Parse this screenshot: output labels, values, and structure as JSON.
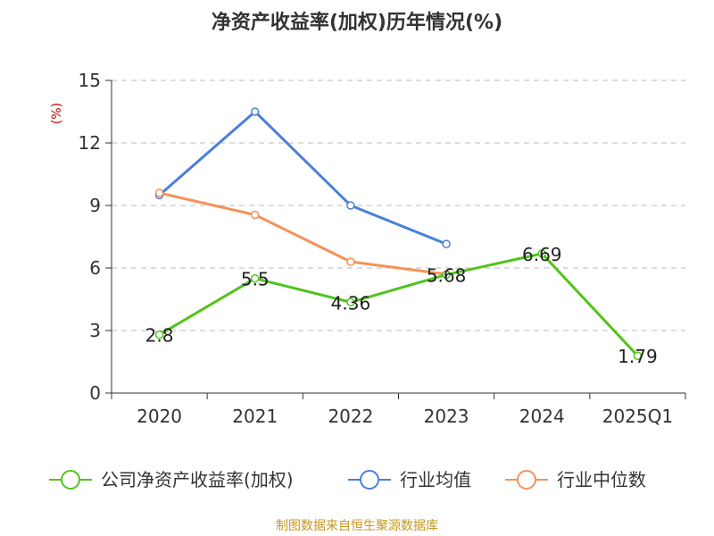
{
  "chart_data": {
    "type": "line",
    "title": "净资产收益率(加权)历年情况(%)",
    "ylabel": "(%)",
    "xlabel": "",
    "categories": [
      "2020",
      "2021",
      "2022",
      "2023",
      "2024",
      "2025Q1"
    ],
    "ylim": [
      0,
      15
    ],
    "yticks": [
      0,
      3,
      6,
      9,
      12,
      15
    ],
    "grid": true,
    "legend_position": "bottom",
    "series": [
      {
        "name": "公司净资产收益率(加权)",
        "color": "#52c41a",
        "values": [
          2.8,
          5.5,
          4.36,
          5.68,
          6.69,
          1.79
        ],
        "labels": [
          "2.8",
          "5.5",
          "4.36",
          "5.68",
          "6.69",
          "1.79"
        ]
      },
      {
        "name": "行业均值",
        "color": "#4a7fdb",
        "values": [
          9.5,
          13.5,
          9.0,
          7.15,
          null,
          null
        ]
      },
      {
        "name": "行业中位数",
        "color": "#f5915a",
        "values": [
          9.6,
          8.55,
          6.3,
          5.7,
          null,
          null
        ]
      }
    ]
  },
  "source_text": "制图数据来自恒生聚源数据库"
}
